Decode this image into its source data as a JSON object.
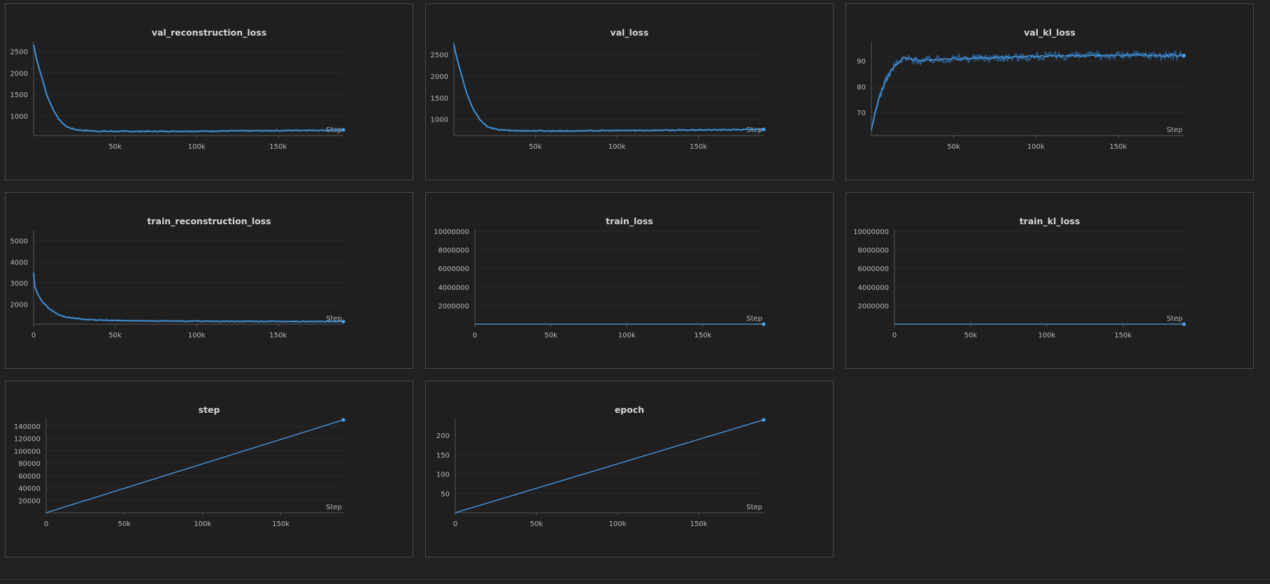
{
  "chart_data": [
    {
      "id": "val_reconstruction_loss",
      "type": "line",
      "title": "val_reconstruction_loss",
      "xlabel": "Step",
      "xlim": [
        0,
        190000
      ],
      "ylim": [
        550,
        2700
      ],
      "xticks": [
        50000,
        100000,
        150000
      ],
      "xtick_labels": [
        "50k",
        "100k",
        "150k"
      ],
      "yticks": [
        1000,
        1500,
        2000,
        2500
      ],
      "ytick_labels": [
        "1000",
        "1500",
        "2000",
        "2500"
      ],
      "series": [
        {
          "name": "val_reconstruction_loss",
          "x": [
            0,
            2000,
            5000,
            8000,
            12000,
            16000,
            20000,
            25000,
            30000,
            40000,
            60000,
            80000,
            100000,
            120000,
            140000,
            160000,
            180000,
            190000
          ],
          "y": [
            2650,
            2300,
            1900,
            1500,
            1150,
            900,
            760,
            690,
            670,
            650,
            645,
            648,
            650,
            655,
            660,
            668,
            672,
            680
          ]
        }
      ],
      "noise": 12
    },
    {
      "id": "val_loss",
      "type": "line",
      "title": "val_loss",
      "xlabel": "Step",
      "xlim": [
        0,
        190000
      ],
      "ylim": [
        620,
        2780
      ],
      "xticks": [
        50000,
        100000,
        150000
      ],
      "xtick_labels": [
        "50k",
        "100k",
        "150k"
      ],
      "yticks": [
        1000,
        1500,
        2000,
        2500
      ],
      "ytick_labels": [
        "1000",
        "1500",
        "2000",
        "2500"
      ],
      "series": [
        {
          "name": "val_loss",
          "x": [
            0,
            2000,
            5000,
            8000,
            12000,
            16000,
            20000,
            25000,
            30000,
            40000,
            60000,
            80000,
            100000,
            120000,
            140000,
            160000,
            180000,
            190000
          ],
          "y": [
            2740,
            2400,
            1980,
            1580,
            1230,
            980,
            840,
            770,
            745,
            730,
            725,
            728,
            735,
            740,
            745,
            752,
            758,
            762
          ]
        }
      ],
      "noise": 12
    },
    {
      "id": "val_kl_loss",
      "type": "line",
      "title": "val_kl_loss",
      "xlabel": "Step",
      "xlim": [
        0,
        190000
      ],
      "ylim": [
        61,
        97
      ],
      "xticks": [
        50000,
        100000,
        150000
      ],
      "xtick_labels": [
        "50k",
        "100k",
        "150k"
      ],
      "yticks": [
        70,
        80,
        90
      ],
      "ytick_labels": [
        "70",
        "80",
        "90"
      ],
      "series": [
        {
          "name": "val_kl_loss",
          "x": [
            0,
            1000,
            3000,
            6000,
            10000,
            14000,
            20000,
            25000,
            30000,
            40000,
            60000,
            80000,
            100000,
            120000,
            140000,
            160000,
            180000,
            190000
          ],
          "y": [
            63,
            66,
            72,
            78,
            84,
            88,
            91,
            90.5,
            90,
            90.5,
            91,
            91.3,
            91.6,
            91.8,
            92,
            92.2,
            92,
            92
          ]
        }
      ],
      "noise": 0.9
    },
    {
      "id": "train_reconstruction_loss",
      "type": "line",
      "title": "train_reconstruction_loss",
      "xlabel": "Step",
      "xlim": [
        0,
        190000
      ],
      "ylim": [
        1050,
        5450
      ],
      "xticks": [
        0,
        50000,
        100000,
        150000
      ],
      "xtick_labels": [
        "0",
        "50k",
        "100k",
        "150k"
      ],
      "yticks": [
        2000,
        3000,
        4000,
        5000
      ],
      "ytick_labels": [
        "2000",
        "3000",
        "4000",
        "5000"
      ],
      "series": [
        {
          "name": "train_reconstruction_loss",
          "x": [
            0,
            500,
            2000,
            5000,
            10000,
            15000,
            20000,
            30000,
            40000,
            60000,
            80000,
            100000,
            120000,
            140000,
            160000,
            180000,
            190000
          ],
          "y": [
            3500,
            2900,
            2550,
            2150,
            1750,
            1500,
            1380,
            1280,
            1240,
            1210,
            1200,
            1190,
            1185,
            1180,
            1175,
            1175,
            1175
          ]
        }
      ],
      "noise": 18
    },
    {
      "id": "train_loss",
      "type": "line",
      "title": "train_loss",
      "xlabel": "Step",
      "xlim": [
        0,
        190000
      ],
      "ylim": [
        0,
        10000000
      ],
      "xticks": [
        0,
        50000,
        100000,
        150000
      ],
      "xtick_labels": [
        "0",
        "50k",
        "100k",
        "150k"
      ],
      "yticks": [
        2000000,
        4000000,
        6000000,
        8000000,
        10000000
      ],
      "ytick_labels": [
        "2000000",
        "4000000",
        "6000000",
        "8000000",
        "10000000"
      ],
      "series": [
        {
          "name": "train_loss",
          "x": [
            0,
            190000
          ],
          "y": [
            1400,
            1300
          ]
        }
      ],
      "noise": 0
    },
    {
      "id": "train_kl_loss",
      "type": "line",
      "title": "train_kl_loss",
      "xlabel": "Step",
      "xlim": [
        0,
        190000
      ],
      "ylim": [
        0,
        10000000
      ],
      "xticks": [
        0,
        50000,
        100000,
        150000
      ],
      "xtick_labels": [
        "0",
        "50k",
        "100k",
        "150k"
      ],
      "yticks": [
        2000000,
        4000000,
        6000000,
        8000000,
        10000000
      ],
      "ytick_labels": [
        "2000000",
        "4000000",
        "6000000",
        "8000000",
        "10000000"
      ],
      "series": [
        {
          "name": "train_kl_loss",
          "x": [
            0,
            190000
          ],
          "y": [
            90,
            92
          ]
        }
      ],
      "noise": 0
    },
    {
      "id": "step",
      "type": "line",
      "title": "step",
      "xlabel": "Step",
      "xlim": [
        0,
        190000
      ],
      "ylim": [
        0,
        150000
      ],
      "xticks": [
        0,
        50000,
        100000,
        150000
      ],
      "xtick_labels": [
        "0",
        "50k",
        "100k",
        "150k"
      ],
      "yticks": [
        20000,
        40000,
        60000,
        80000,
        100000,
        120000,
        140000
      ],
      "ytick_labels": [
        "20000",
        "40000",
        "60000",
        "80000",
        "100000",
        "120000",
        "140000"
      ],
      "series": [
        {
          "name": "step",
          "x": [
            0,
            190000
          ],
          "y": [
            0,
            150000
          ]
        }
      ],
      "noise": 0
    },
    {
      "id": "epoch",
      "type": "line",
      "title": "epoch",
      "xlabel": "Step",
      "xlim": [
        0,
        190000
      ],
      "ylim": [
        0,
        240
      ],
      "xticks": [
        0,
        50000,
        100000,
        150000
      ],
      "xtick_labels": [
        "0",
        "50k",
        "100k",
        "150k"
      ],
      "yticks": [
        50,
        100,
        150,
        200
      ],
      "ytick_labels": [
        "50",
        "100",
        "150",
        "200"
      ],
      "series": [
        {
          "name": "epoch",
          "x": [
            0,
            190000
          ],
          "y": [
            0,
            240
          ]
        }
      ],
      "noise": 0
    }
  ],
  "colors": {
    "line": "#4a9fe8",
    "band": "#2e6ca6",
    "grid": "#2b2b2b",
    "axis": "#555555",
    "text": "#b9b9b9"
  }
}
